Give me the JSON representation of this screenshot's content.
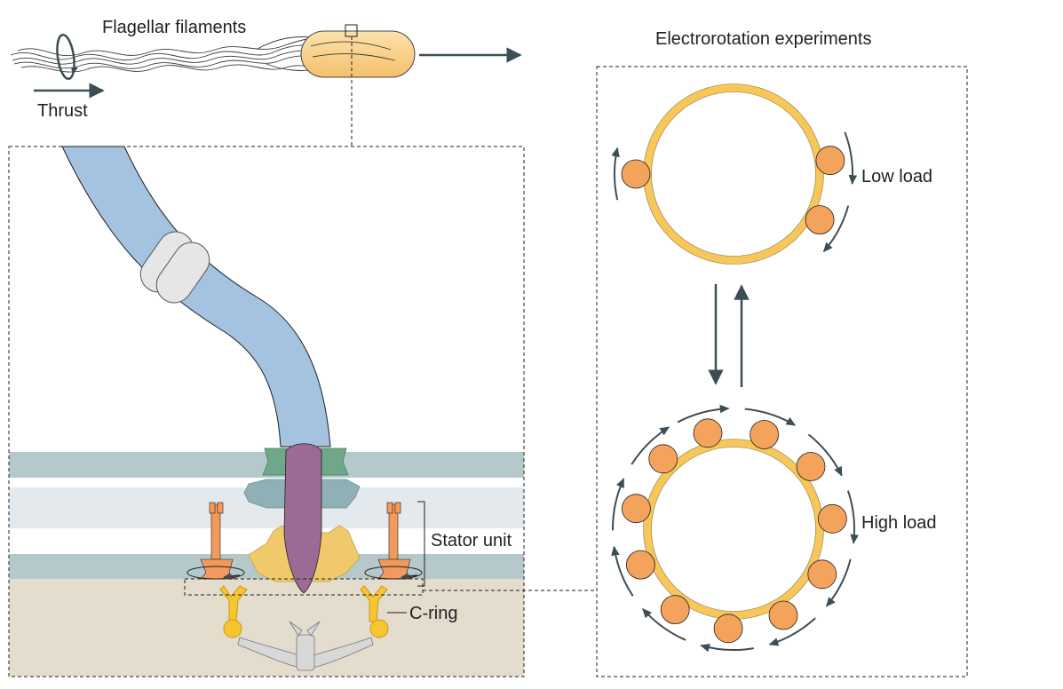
{
  "labels": {
    "flagellar_filaments": "Flagellar filaments",
    "thrust": "Thrust",
    "electrorotation": "Electrorotation experiments",
    "low_load": "Low load",
    "high_load": "High load",
    "stator_unit": "Stator unit",
    "c_ring": "C-ring"
  },
  "colors": {
    "filament": "#a3c3e0",
    "cell_body": "#f9d18e",
    "bead_ring": "#f7c75c",
    "stator": "#f29a5e",
    "rod": "#9b6b96",
    "l_ring": "#6fa889",
    "p_ring": "#8fb1b6",
    "ms_ring": "#f0c96a",
    "membrane_dark": "#b5c9cc",
    "membrane_light": "#e3e9ec",
    "cytoplasm": "#e4dccd",
    "arrow": "#3d4d56"
  },
  "low_load": {
    "stator_count": 3
  },
  "high_load": {
    "stator_count": 11
  }
}
